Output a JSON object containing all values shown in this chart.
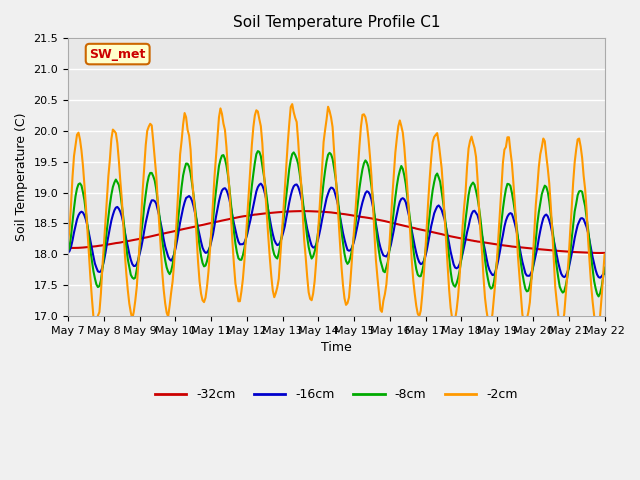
{
  "title": "Soil Temperature Profile C1",
  "xlabel": "Time",
  "ylabel": "Soil Temperature (C)",
  "ylim": [
    17.0,
    21.5
  ],
  "yticks": [
    17.0,
    17.5,
    18.0,
    18.5,
    19.0,
    19.5,
    20.0,
    20.5,
    21.0,
    21.5
  ],
  "x_labels": [
    "May 7",
    "May 8",
    "May 9",
    "May 10",
    "May 11",
    "May 12",
    "May 13",
    "May 14",
    "May 15",
    "May 16",
    "May 17",
    "May 18",
    "May 19",
    "May 20",
    "May 21",
    "May 22"
  ],
  "annotation_text": "SW_met",
  "annotation_bg": "#ffffcc",
  "annotation_border": "#cc6600",
  "annotation_text_color": "#cc0000",
  "colors": {
    "-32cm": "#cc0000",
    "-16cm": "#0000cc",
    "-8cm": "#00aa00",
    "-2cm": "#ff9900"
  },
  "line_width": 1.5,
  "plot_bg": "#e8e8e8",
  "grid_color": "#ffffff",
  "legend_labels": [
    "-32cm",
    "-16cm",
    "-8cm",
    "-2cm"
  ]
}
